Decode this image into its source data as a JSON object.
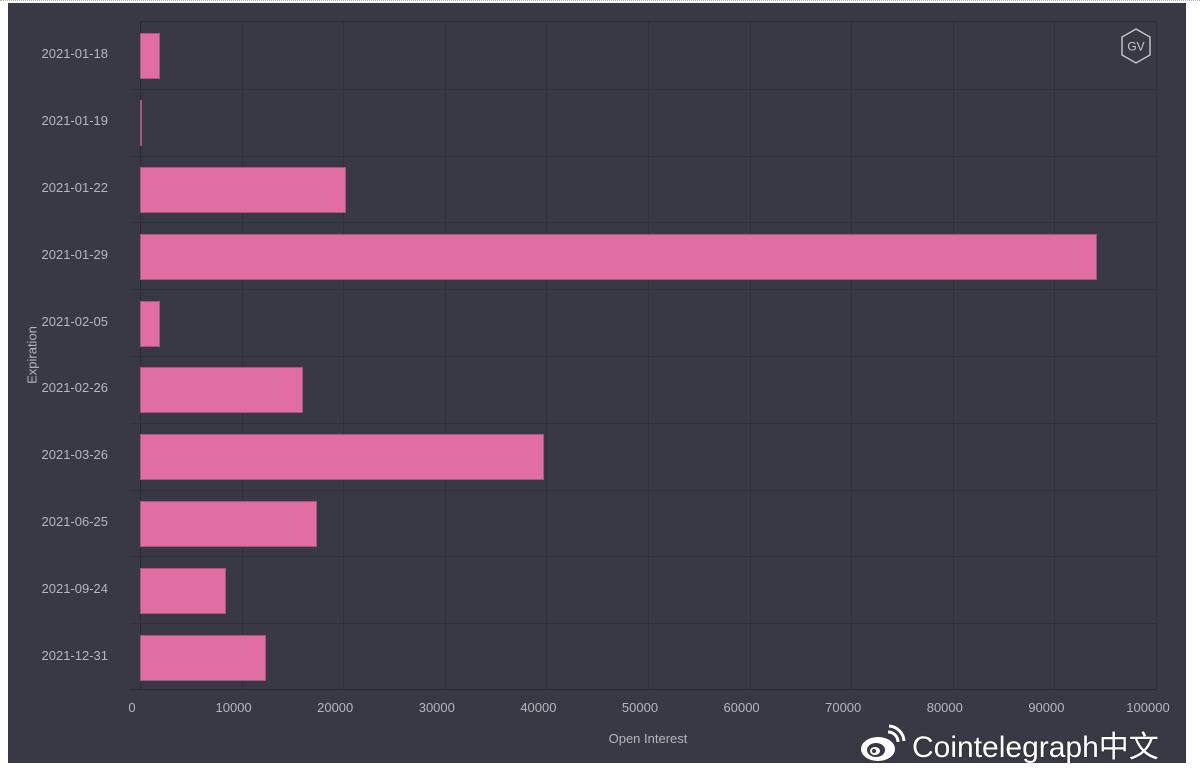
{
  "chart_data": {
    "type": "bar",
    "orientation": "horizontal",
    "title": "",
    "xlabel": "Open Interest",
    "ylabel": "Expiration",
    "xlim": [
      0,
      100000
    ],
    "grid": true,
    "legend": null,
    "categories": [
      "2021-01-18",
      "2021-01-19",
      "2021-01-22",
      "2021-01-29",
      "2021-02-05",
      "2021-02-26",
      "2021-03-26",
      "2021-06-25",
      "2021-09-24",
      "2021-12-31"
    ],
    "values": [
      2000,
      200,
      20300,
      94200,
      2000,
      16000,
      39800,
      17400,
      8500,
      12400
    ],
    "x_ticks": [
      "0",
      "10000",
      "20000",
      "30000",
      "40000",
      "50000",
      "60000",
      "70000",
      "80000",
      "90000",
      "100000"
    ],
    "bar_color": "#e06ea2",
    "background_color": "#393945"
  },
  "logo": {
    "text": "GV"
  },
  "watermark": {
    "icon": "weibo-icon",
    "text": "Cointelegraph中文"
  }
}
